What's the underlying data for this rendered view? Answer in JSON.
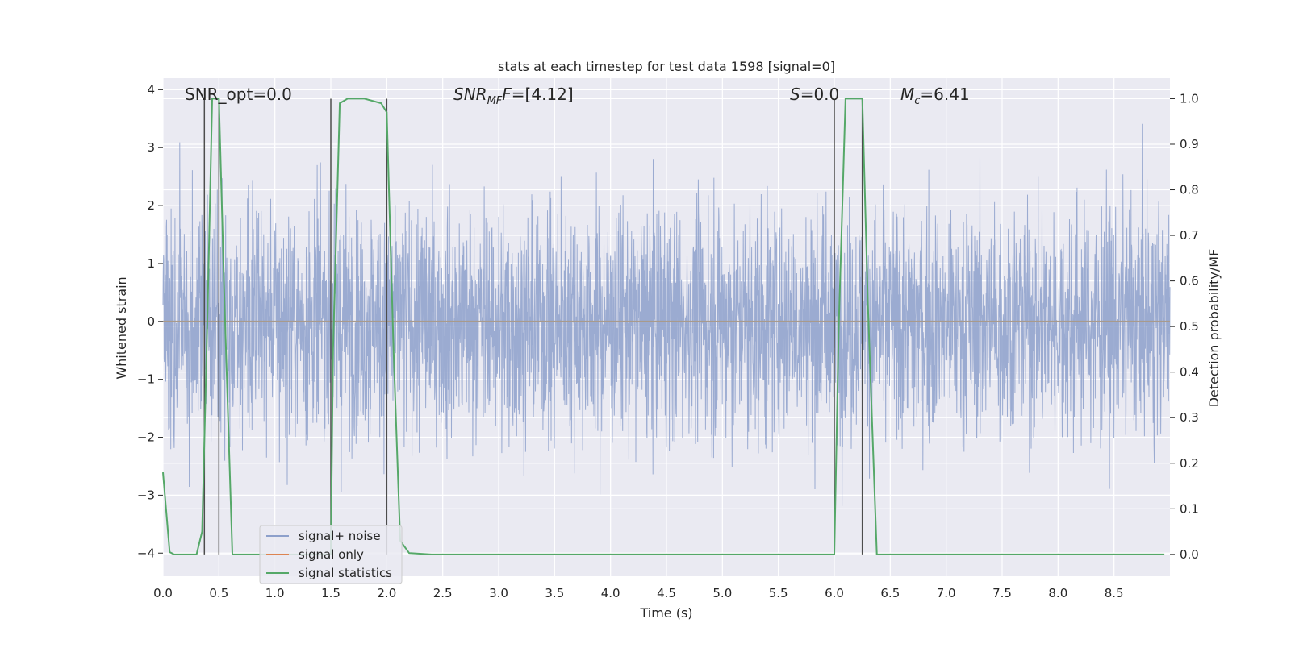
{
  "chart_data": {
    "type": "line",
    "title": "stats at each timestep for test data 1598 [signal=0]",
    "xlabel": "Time (s)",
    "ylabel_left": "Whitened strain",
    "ylabel_right": "Detection probability/MF",
    "xlim": [
      0,
      9.0
    ],
    "ylim_left": [
      -4.4,
      4.2
    ],
    "ylim_right": [
      -0.048,
      1.045
    ],
    "xticks": [
      "0.0",
      "0.5",
      "1.0",
      "1.5",
      "2.0",
      "2.5",
      "3.0",
      "3.5",
      "4.0",
      "4.5",
      "5.0",
      "5.5",
      "6.0",
      "6.5",
      "7.0",
      "7.5",
      "8.0",
      "8.5"
    ],
    "yticks_left": [
      "4",
      "3",
      "2",
      "1",
      "0",
      "−1",
      "−2",
      "−3",
      "−4"
    ],
    "yticks_right": [
      "1.0",
      "0.9",
      "0.8",
      "0.7",
      "0.6",
      "0.5",
      "0.4",
      "0.3",
      "0.2",
      "0.1",
      "0.0"
    ],
    "grid": true,
    "legend_position": "lower-left",
    "annotations": {
      "snr_opt": "SNR_opt=0.0",
      "snr_mf_symbol": "SNR",
      "snr_mf_sub": "MF",
      "snr_mf_value": "=[4.12]",
      "s_symbol": "S",
      "s_value": "=0.0",
      "mc_symbol": "M",
      "mc_sub": "c",
      "mc_value": "=6.41"
    },
    "series": [
      {
        "name": "signal+ noise",
        "color": "#8da0cb",
        "kind": "noise",
        "std": 1.0,
        "x_range": [
          0,
          9.0
        ]
      },
      {
        "name": "signal only",
        "color": "#dd8452",
        "kind": "flat",
        "value": 0.0
      },
      {
        "name": "signal statistics",
        "color": "#55a868",
        "axis": "right",
        "x": [
          0.0,
          0.06,
          0.1,
          0.15,
          0.2,
          0.25,
          0.3,
          0.35,
          0.4,
          0.44,
          0.5,
          0.55,
          0.62,
          0.7,
          1.0,
          1.3,
          1.5,
          1.52,
          1.58,
          1.65,
          1.8,
          1.95,
          2.0,
          2.06,
          2.12,
          2.2,
          2.4,
          3.0,
          4.0,
          5.0,
          6.0,
          6.04,
          6.1,
          6.25,
          6.3,
          6.38,
          6.45,
          7.0,
          8.0,
          8.95
        ],
        "y": [
          0.18,
          0.005,
          0.0,
          0.0,
          0.0,
          0.0,
          0.0,
          0.05,
          0.55,
          1.0,
          1.0,
          0.55,
          0.0,
          0.0,
          0.0,
          0.0,
          0.0,
          0.45,
          0.99,
          1.0,
          1.0,
          0.99,
          0.97,
          0.45,
          0.03,
          0.003,
          0.0,
          0.0,
          0.0,
          0.0,
          0.0,
          0.5,
          1.0,
          1.0,
          0.55,
          0.0,
          0.0,
          0.0,
          0.0,
          0.0
        ]
      },
      {
        "name": "",
        "color": "#4d4d4d",
        "kind": "vlines",
        "x": [
          0.37,
          0.5,
          1.5,
          2.0,
          6.0,
          6.25
        ],
        "y_right": [
          0,
          1.0
        ]
      }
    ]
  }
}
